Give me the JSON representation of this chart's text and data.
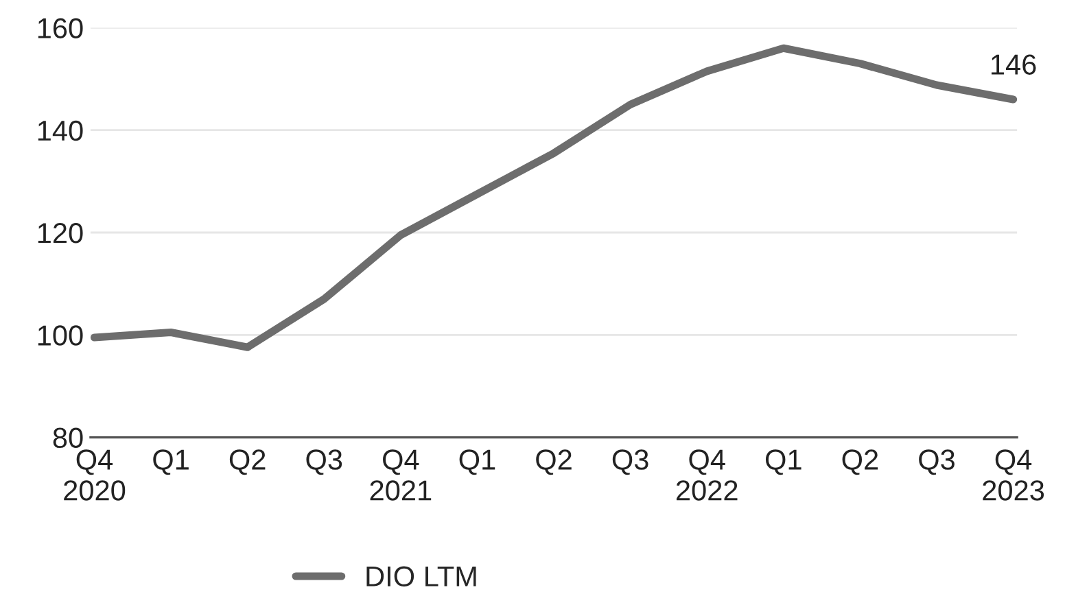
{
  "chart_data": {
    "type": "line",
    "categories": [
      "Q4\n2020",
      "Q1",
      "Q2",
      "Q3",
      "Q4\n2021",
      "Q1",
      "Q2",
      "Q3",
      "Q4\n2022",
      "Q1",
      "Q2",
      "Q3",
      "Q4\n2023"
    ],
    "series": [
      {
        "name": "DIO LTM",
        "color": "#6d6d6d",
        "values": [
          99.5,
          100.5,
          97.6,
          107,
          119.5,
          127.5,
          135.5,
          145,
          151.5,
          156,
          153,
          148.8,
          146
        ],
        "value_labels": [
          null,
          null,
          null,
          null,
          null,
          null,
          null,
          null,
          null,
          null,
          null,
          null,
          "146"
        ]
      }
    ],
    "ylim": [
      80,
      160
    ],
    "yticks": [
      80,
      100,
      120,
      140,
      160
    ],
    "grid": "y",
    "legend": "bottom",
    "marker": "none",
    "line_style": "solid"
  }
}
